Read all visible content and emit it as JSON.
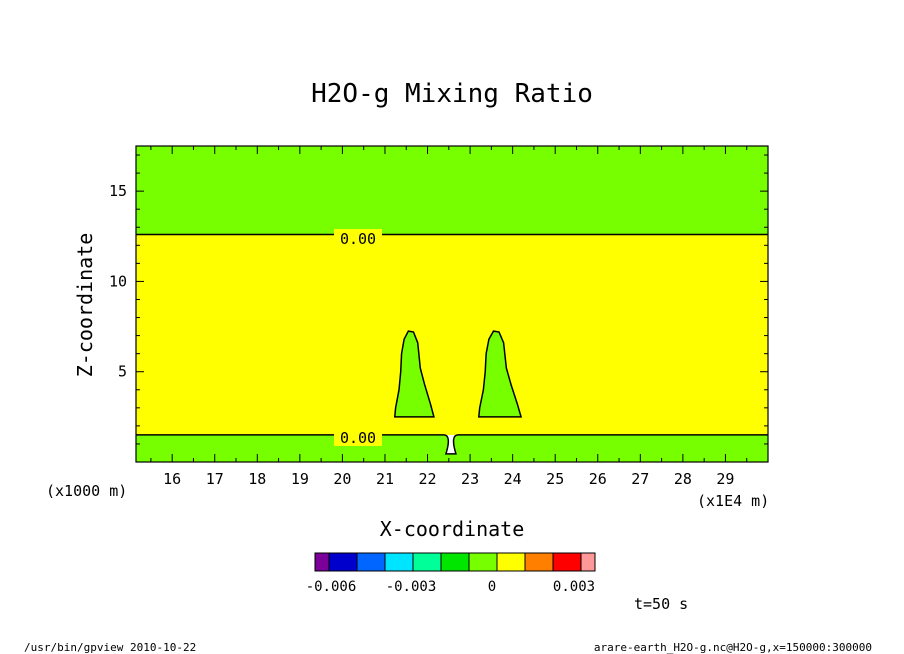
{
  "chart_data": {
    "type": "contour",
    "title": "H2O-g Mixing Ratio",
    "xlabel": "X-coordinate",
    "ylabel": "Z-coordinate",
    "x_unit_label": "(x1E4 m)",
    "y_unit_label": "(x1000 m)",
    "xlim": [
      15.15,
      30.0
    ],
    "ylim": [
      0,
      17.5
    ],
    "x_ticks": [
      16,
      17,
      18,
      19,
      20,
      21,
      22,
      23,
      24,
      25,
      26,
      27,
      28,
      29
    ],
    "y_ticks": [
      5,
      10,
      15
    ],
    "contour_labels": [
      "0.00",
      "0.00"
    ],
    "contour_levels_z": [
      12.6,
      1.5
    ],
    "colorbar": {
      "colors": [
        "#7a0099",
        "#0000cc",
        "#0066ff",
        "#00e5ff",
        "#00ff99",
        "#00e600",
        "#77ff00",
        "#ffff00",
        "#ff8000",
        "#ff0000",
        "#ff9999"
      ],
      "labels": [
        "-0.006",
        "-0.003",
        "0",
        "0.003"
      ]
    },
    "colors": {
      "upper_region": "#77ff00",
      "middle_region": "#ffff00",
      "lower_region": "#77ff00"
    }
  },
  "annotations": {
    "time": "t=50 s",
    "footer_left": "/usr/bin/gpview  2010-10-22",
    "footer_right": "arare-earth_H2O-g.nc@H2O-g,x=150000:300000"
  }
}
